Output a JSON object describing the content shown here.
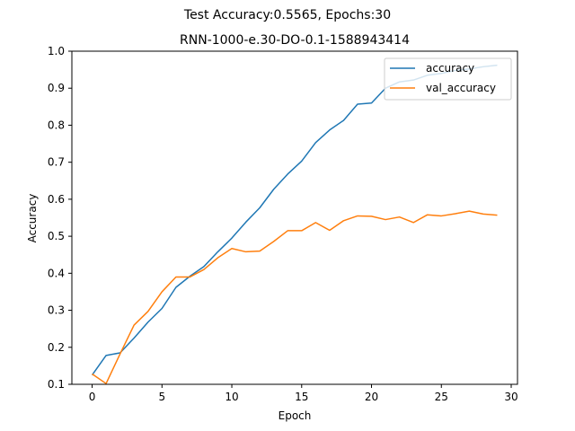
{
  "chart_data": {
    "type": "line",
    "suptitle": "Test Accuracy:0.5565, Epochs:30",
    "title": "RNN-1000-e.30-DO-0.1-1588943414",
    "xlabel": "Epoch",
    "ylabel": "Accuracy",
    "xlim": [
      -1.45,
      30.45
    ],
    "ylim": [
      0.1,
      1.0
    ],
    "xticks": [
      0,
      5,
      10,
      15,
      20,
      25,
      30
    ],
    "yticks": [
      0.1,
      0.2,
      0.3,
      0.4,
      0.5,
      0.6,
      0.7,
      0.8,
      0.9,
      1.0
    ],
    "xtick_labels": [
      "0",
      "5",
      "10",
      "15",
      "20",
      "25",
      "30"
    ],
    "ytick_labels": [
      "0.1",
      "0.2",
      "0.3",
      "0.4",
      "0.5",
      "0.6",
      "0.7",
      "0.8",
      "0.9",
      "1.0"
    ],
    "grid": false,
    "legend_position": "top-right",
    "x": [
      0,
      1,
      2,
      3,
      4,
      5,
      6,
      7,
      8,
      9,
      10,
      11,
      12,
      13,
      14,
      15,
      16,
      17,
      18,
      19,
      20,
      21,
      22,
      23,
      24,
      25,
      26,
      27,
      28,
      29
    ],
    "series": [
      {
        "name": "accuracy",
        "color": "#1f77b4",
        "values": [
          0.125,
          0.178,
          0.185,
          0.225,
          0.268,
          0.305,
          0.362,
          0.392,
          0.418,
          0.458,
          0.495,
          0.538,
          0.577,
          0.627,
          0.668,
          0.703,
          0.753,
          0.787,
          0.813,
          0.857,
          0.86,
          0.9,
          0.917,
          0.922,
          0.935,
          0.94,
          0.948,
          0.952,
          0.958,
          0.962
        ]
      },
      {
        "name": "val_accuracy",
        "color": "#ff7f0e",
        "values": [
          0.128,
          0.102,
          0.182,
          0.26,
          0.297,
          0.35,
          0.39,
          0.39,
          0.41,
          0.442,
          0.467,
          0.458,
          0.46,
          0.486,
          0.515,
          0.515,
          0.537,
          0.516,
          0.542,
          0.555,
          0.554,
          0.545,
          0.552,
          0.537,
          0.558,
          0.555,
          0.561,
          0.568,
          0.56,
          0.557
        ]
      }
    ]
  }
}
